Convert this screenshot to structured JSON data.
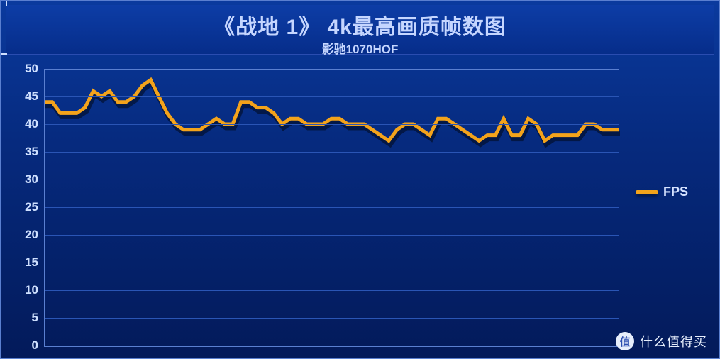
{
  "title": "《战地 1》 4k最高画质帧数图",
  "subtitle": "影驰1070HOF",
  "legend": {
    "label": "FPS",
    "swatch_color": "#f3a31b"
  },
  "watermark": {
    "badge": "值",
    "text": "什么值得买"
  },
  "chart": {
    "type": "line",
    "ylim": [
      0,
      50
    ],
    "ytick_step": 5,
    "yticks": [
      0,
      5,
      10,
      15,
      20,
      25,
      30,
      35,
      40,
      45,
      50
    ],
    "grid_color_major": "#5a7fd0",
    "grid_color_minor": "#2a55b5",
    "axis_label_color": "#cfe0ff",
    "axis_label_fontsize": 17,
    "background": "linear-gradient(#0a3a9e,#031a5a)",
    "series": [
      {
        "name": "FPS",
        "color": "#f3a31b",
        "shadow_color": "rgba(0,0,0,0.45)",
        "line_width": 5,
        "values": [
          44,
          44,
          42,
          42,
          42,
          43,
          46,
          45,
          46,
          44,
          44,
          45,
          47,
          48,
          45,
          42,
          40,
          39,
          39,
          39,
          40,
          41,
          40,
          40,
          44,
          44,
          43,
          43,
          42,
          40,
          41,
          41,
          40,
          40,
          40,
          41,
          41,
          40,
          40,
          40,
          39,
          38,
          37,
          39,
          40,
          40,
          39,
          38,
          41,
          41,
          40,
          39,
          38,
          37,
          38,
          38,
          41,
          38,
          38,
          41,
          40,
          37,
          38,
          38,
          38,
          38,
          40,
          40,
          39,
          39,
          39
        ]
      }
    ]
  }
}
